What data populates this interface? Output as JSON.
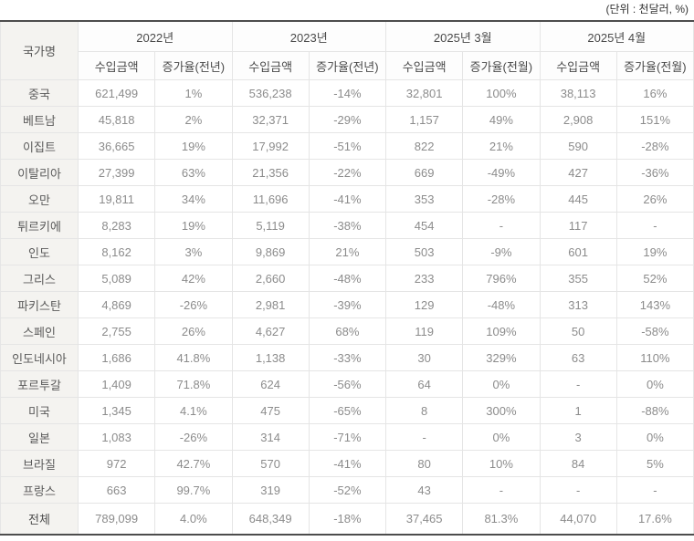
{
  "unit_label": "(단위 : 천달러, %)",
  "colors": {
    "border_dark": "#4d4d4d",
    "border_light": "#e5e5e5",
    "row_label_bg": "#f4f3f0",
    "value_text": "#8c8c8c"
  },
  "chart_data": {
    "type": "table",
    "title": "",
    "unit": "천달러, %",
    "corner_header": "국가명",
    "col_groups": [
      {
        "label": "2022년",
        "sub": [
          "수입금액",
          "증가율(전년)"
        ]
      },
      {
        "label": "2023년",
        "sub": [
          "수입금액",
          "증가율(전년)"
        ]
      },
      {
        "label": "2025년 3월",
        "sub": [
          "수입금액",
          "증가율(전월)"
        ]
      },
      {
        "label": "2025년 4월",
        "sub": [
          "수입금액",
          "증가율(전월)"
        ]
      }
    ],
    "rows": [
      {
        "country": "중국",
        "values": [
          "621,499",
          "1%",
          "536,238",
          "-14%",
          "32,801",
          "100%",
          "38,113",
          "16%"
        ]
      },
      {
        "country": "베트남",
        "values": [
          "45,818",
          "2%",
          "32,371",
          "-29%",
          "1,157",
          "49%",
          "2,908",
          "151%"
        ]
      },
      {
        "country": "이집트",
        "values": [
          "36,665",
          "19%",
          "17,992",
          "-51%",
          "822",
          "21%",
          "590",
          "-28%"
        ]
      },
      {
        "country": "이탈리아",
        "values": [
          "27,399",
          "63%",
          "21,356",
          "-22%",
          "669",
          "-49%",
          "427",
          "-36%"
        ]
      },
      {
        "country": "오만",
        "values": [
          "19,811",
          "34%",
          "11,696",
          "-41%",
          "353",
          "-28%",
          "445",
          "26%"
        ]
      },
      {
        "country": "튀르키에",
        "values": [
          "8,283",
          "19%",
          "5,119",
          "-38%",
          "454",
          "-",
          "117",
          "-"
        ]
      },
      {
        "country": "인도",
        "values": [
          "8,162",
          "3%",
          "9,869",
          "21%",
          "503",
          "-9%",
          "601",
          "19%"
        ]
      },
      {
        "country": "그리스",
        "values": [
          "5,089",
          "42%",
          "2,660",
          "-48%",
          "233",
          "796%",
          "355",
          "52%"
        ]
      },
      {
        "country": "파키스탄",
        "values": [
          "4,869",
          "-26%",
          "2,981",
          "-39%",
          "129",
          "-48%",
          "313",
          "143%"
        ]
      },
      {
        "country": "스페인",
        "values": [
          "2,755",
          "26%",
          "4,627",
          "68%",
          "119",
          "109%",
          "50",
          "-58%"
        ]
      },
      {
        "country": "인도네시아",
        "values": [
          "1,686",
          "41.8%",
          "1,138",
          "-33%",
          "30",
          "329%",
          "63",
          "110%"
        ]
      },
      {
        "country": "포르투갈",
        "values": [
          "1,409",
          "71.8%",
          "624",
          "-56%",
          "64",
          "0%",
          "-",
          "0%"
        ]
      },
      {
        "country": "미국",
        "values": [
          "1,345",
          "4.1%",
          "475",
          "-65%",
          "8",
          "300%",
          "1",
          "-88%"
        ]
      },
      {
        "country": "일본",
        "values": [
          "1,083",
          "-26%",
          "314",
          "-71%",
          "-",
          "0%",
          "3",
          "0%"
        ]
      },
      {
        "country": "브라질",
        "values": [
          "972",
          "42.7%",
          "570",
          "-41%",
          "80",
          "10%",
          "84",
          "5%"
        ]
      },
      {
        "country": "프랑스",
        "values": [
          "663",
          "99.7%",
          "319",
          "-52%",
          "43",
          "-",
          "-",
          "-"
        ]
      }
    ],
    "total_row": {
      "country": "전체",
      "values": [
        "789,099",
        "4.0%",
        "648,349",
        "-18%",
        "37,465",
        "81.3%",
        "44,070",
        "17.6%"
      ]
    }
  }
}
